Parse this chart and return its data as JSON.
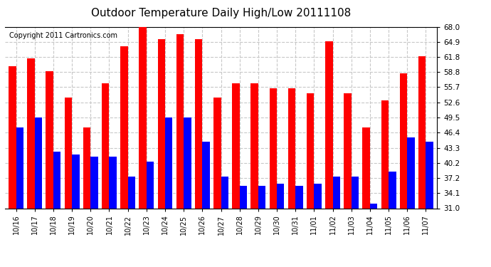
{
  "title": "Outdoor Temperature Daily High/Low 20111108",
  "copyright": "Copyright 2011 Cartronics.com",
  "categories": [
    "10/16",
    "10/17",
    "10/18",
    "10/19",
    "10/20",
    "10/21",
    "10/22",
    "10/23",
    "10/24",
    "10/25",
    "10/26",
    "10/27",
    "10/28",
    "10/29",
    "10/30",
    "10/31",
    "11/01",
    "11/02",
    "11/03",
    "11/04",
    "11/05",
    "11/06",
    "11/07"
  ],
  "highs": [
    60.0,
    61.5,
    59.0,
    53.5,
    47.5,
    56.5,
    64.0,
    68.0,
    65.5,
    66.5,
    65.5,
    53.5,
    56.5,
    56.5,
    55.5,
    55.5,
    54.5,
    65.0,
    54.5,
    47.5,
    53.0,
    58.5,
    62.0
  ],
  "lows": [
    47.5,
    49.5,
    42.5,
    42.0,
    41.5,
    41.5,
    37.5,
    40.5,
    49.5,
    49.5,
    44.5,
    37.5,
    35.5,
    35.5,
    36.0,
    35.5,
    36.0,
    37.5,
    37.5,
    32.0,
    38.5,
    45.5,
    44.5
  ],
  "high_color": "#ff0000",
  "low_color": "#0000ff",
  "bg_color": "#ffffff",
  "plot_bg_color": "#ffffff",
  "grid_color": "#c8c8c8",
  "ymin": 31.0,
  "ymax": 68.0,
  "yticks": [
    31.0,
    34.1,
    37.2,
    40.2,
    43.3,
    46.4,
    49.5,
    52.6,
    55.7,
    58.8,
    61.8,
    64.9,
    68.0
  ],
  "title_fontsize": 11,
  "copyright_fontsize": 7,
  "bar_width": 0.4
}
